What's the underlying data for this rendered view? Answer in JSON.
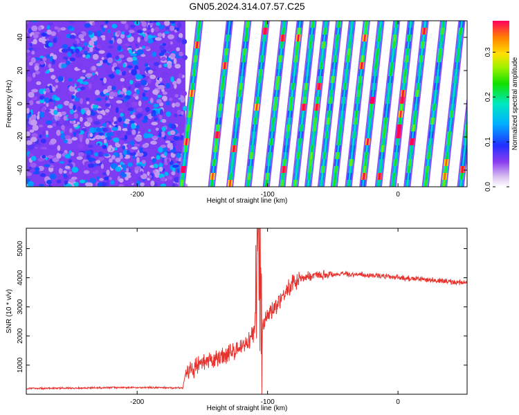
{
  "title": "GN05.2024.314.07.57.C25",
  "colors": {
    "snr_line": "#e8312c",
    "background": "#ffffff"
  },
  "chart_data": [
    {
      "type": "heatmap",
      "xlabel": "Height of straight line (km)",
      "ylabel": "Frequency (Hz)",
      "xlim": [
        -285,
        53
      ],
      "ylim": [
        -50,
        50
      ],
      "x_ticks": [
        -200,
        -100,
        0
      ],
      "x_tick_labels": [
        "-200",
        "-100",
        "0"
      ],
      "y_ticks": [
        -40,
        -20,
        0,
        20,
        40
      ],
      "y_tick_labels": [
        "-40",
        "-20",
        "0",
        "20",
        "40"
      ],
      "colorbar": {
        "label": "Normalized spectral amplitude",
        "range": [
          0.0,
          0.37
        ],
        "ticks": [
          0.0,
          0.1,
          0.2,
          0.3
        ],
        "tick_labels": [
          "0.0",
          "0.1",
          "0.2",
          "0.3"
        ],
        "colormap": "rainbow"
      },
      "regions": [
        {
          "x_range": [
            -285,
            -163
          ],
          "pattern": "dense random noise, amplitude 0.03-0.12"
        },
        {
          "x_range": [
            -163,
            53
          ],
          "pattern": "diagonal stripes rising to the right, spacing approx 12 km, amplitude 0.08-0.37"
        }
      ],
      "stripe_centers_km_at_0Hz": [
        -159,
        -136,
        -122,
        -108,
        -94,
        -82,
        -72,
        -62,
        -52,
        -42,
        -31,
        -20,
        -8,
        3,
        14,
        28,
        42,
        55
      ]
    },
    {
      "type": "line",
      "xlabel": "Height of straight line (km)",
      "ylabel": "SNR (10 * v/v)",
      "xlim": [
        -285,
        53
      ],
      "ylim": [
        0,
        5700
      ],
      "x_ticks": [
        -200,
        -100,
        0
      ],
      "x_tick_labels": [
        "-200",
        "-100",
        "0"
      ],
      "y_ticks": [
        1000,
        2000,
        3000,
        4000,
        5000
      ],
      "y_tick_labels": [
        "1000",
        "2000",
        "3000",
        "4000",
        "5000"
      ],
      "series": [
        {
          "x": [
            -285,
            -250,
            -220,
            -190,
            -165,
            -163,
            -155,
            -145,
            -135,
            -125,
            -115,
            -110,
            -107,
            -105,
            -100,
            -95,
            -90,
            -85,
            -80,
            -75,
            -70,
            -60,
            -50,
            -40,
            -30,
            -20,
            -10,
            0,
            10,
            20,
            30,
            40,
            53
          ],
          "values": [
            200,
            210,
            230,
            230,
            220,
            700,
            950,
            1100,
            1300,
            1500,
            1800,
            2100,
            5600,
            2400,
            2700,
            3000,
            3300,
            3600,
            3800,
            3950,
            4050,
            4100,
            4120,
            4130,
            4110,
            4080,
            4050,
            4000,
            3970,
            3940,
            3900,
            3860,
            3830
          ]
        }
      ]
    }
  ]
}
